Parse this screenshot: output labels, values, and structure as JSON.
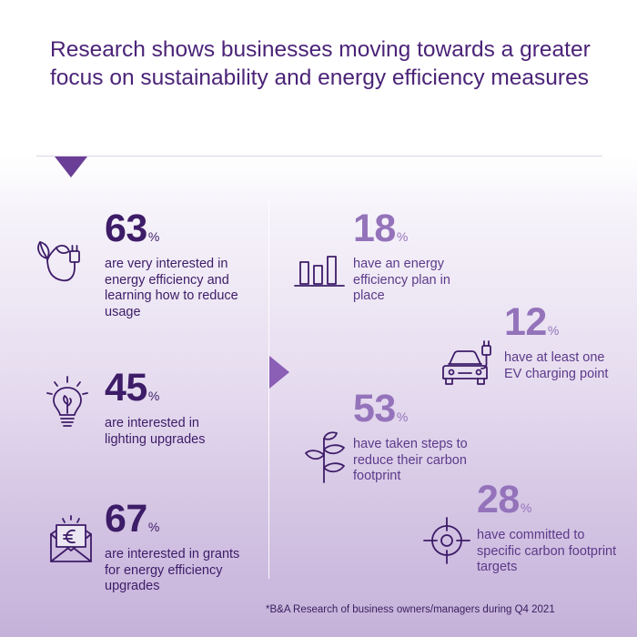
{
  "header": {
    "title": "Research shows businesses moving towards a greater focus on sustainability and energy efficiency measures"
  },
  "stats": {
    "energy_interest": {
      "value": "63",
      "unit": "%",
      "text": "are very interested in energy efficiency and learning how to reduce usage",
      "icon": "plant-plug-icon"
    },
    "lighting": {
      "value": "45",
      "unit": "%",
      "text": "are interested in lighting upgrades",
      "icon": "lightbulb-icon"
    },
    "grants": {
      "value": "67",
      "unit": "%",
      "text": "are interested in grants for energy efficiency upgrades",
      "icon": "euro-envelope-icon"
    },
    "energy_plan": {
      "value": "18",
      "unit": "%",
      "text": "have an energy efficiency plan in place",
      "icon": "bar-chart-icon"
    },
    "ev_charging": {
      "value": "12",
      "unit": "%",
      "text": "have at least one EV charging point",
      "icon": "ev-car-icon"
    },
    "carbon_steps": {
      "value": "53",
      "unit": "%",
      "text": "have taken steps to reduce their carbon footprint",
      "icon": "sprout-icon"
    },
    "carbon_targets": {
      "value": "28",
      "unit": "%",
      "text": "have committed to specific carbon footprint targets",
      "icon": "target-icon"
    }
  },
  "footnote": "*B&A Research of business owners/managers during Q4 2021",
  "colors": {
    "dark_purple": "#3d1c68",
    "light_purple": "#9473bb",
    "title_purple": "#4b2478"
  }
}
